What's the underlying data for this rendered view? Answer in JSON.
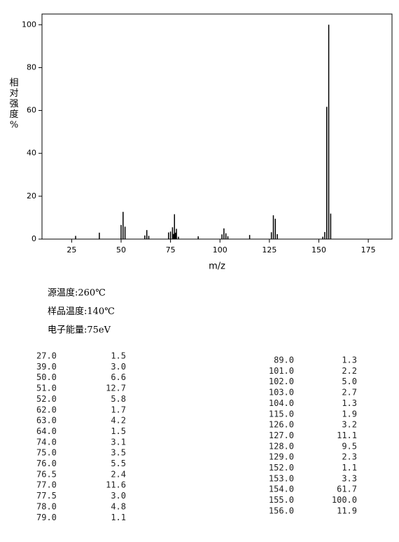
{
  "chart_data": {
    "type": "spectrum",
    "y_label": "相对强度%",
    "x_label": "m/z",
    "x": [
      27,
      39,
      50,
      51,
      52,
      62,
      63,
      64,
      74,
      75,
      76,
      76.5,
      77,
      77.5,
      78,
      79,
      89,
      101,
      102,
      103,
      104,
      115,
      126,
      127,
      128,
      129,
      152,
      153,
      154,
      155,
      156
    ],
    "values": [
      1.5,
      3.0,
      6.6,
      12.7,
      5.8,
      1.7,
      4.2,
      1.5,
      3.1,
      3.5,
      5.5,
      2.4,
      11.6,
      3.0,
      4.8,
      1.1,
      1.3,
      2.2,
      5.0,
      2.7,
      1.3,
      1.9,
      3.2,
      11.1,
      9.5,
      2.3,
      1.1,
      3.3,
      61.7,
      100.0,
      11.9
    ],
    "color": "#000000",
    "xlim": [
      10,
      187
    ],
    "xticks": [
      25,
      50,
      75,
      100,
      125,
      150,
      175
    ],
    "ylim": [
      0,
      105
    ],
    "yticks": [
      0,
      20,
      40,
      60,
      80,
      100
    ]
  },
  "conditions": [
    "源温度:260℃",
    "样品温度:140℃",
    "电子能量:75eV"
  ],
  "table_left": [
    [
      "27.0",
      "1.5"
    ],
    [
      "39.0",
      "3.0"
    ],
    [
      "50.0",
      "6.6"
    ],
    [
      "51.0",
      "12.7"
    ],
    [
      "52.0",
      "5.8"
    ],
    [
      "62.0",
      "1.7"
    ],
    [
      "63.0",
      "4.2"
    ],
    [
      "64.0",
      "1.5"
    ],
    [
      "74.0",
      "3.1"
    ],
    [
      "75.0",
      "3.5"
    ],
    [
      "76.0",
      "5.5"
    ],
    [
      "76.5",
      "2.4"
    ],
    [
      "77.0",
      "11.6"
    ],
    [
      "77.5",
      "3.0"
    ],
    [
      "78.0",
      "4.8"
    ],
    [
      "79.0",
      "1.1"
    ]
  ],
  "table_right": [
    [
      "89.0",
      "1.3"
    ],
    [
      "101.0",
      "2.2"
    ],
    [
      "102.0",
      "5.0"
    ],
    [
      "103.0",
      "2.7"
    ],
    [
      "104.0",
      "1.3"
    ],
    [
      "115.0",
      "1.9"
    ],
    [
      "126.0",
      "3.2"
    ],
    [
      "127.0",
      "11.1"
    ],
    [
      "128.0",
      "9.5"
    ],
    [
      "129.0",
      "2.3"
    ],
    [
      "152.0",
      "1.1"
    ],
    [
      "153.0",
      "3.3"
    ],
    [
      "154.0",
      "61.7"
    ],
    [
      "155.0",
      "100.0"
    ],
    [
      "156.0",
      "11.9"
    ]
  ]
}
